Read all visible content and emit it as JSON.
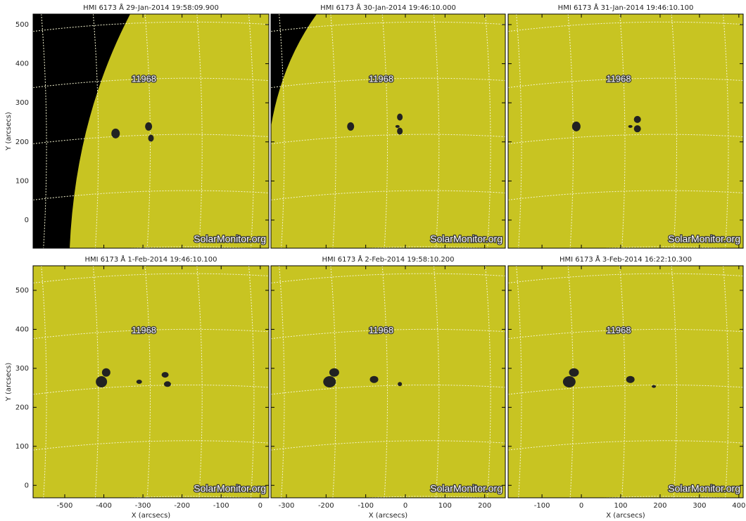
{
  "panels": [
    {
      "title": "HMI 6173 Å 29-Jan-2014 19:58:09.900",
      "region": "11968",
      "watermark": "SolarMonitor.org"
    },
    {
      "title": "HMI 6173 Å 30-Jan-2014 19:46:10.000",
      "region": "11968",
      "watermark": "SolarMonitor.org"
    },
    {
      "title": "HMI 6173 Å 31-Jan-2014 19:46:10.100",
      "region": "11968",
      "watermark": "SolarMonitor.org"
    },
    {
      "title": "HMI 6173 Å  1-Feb-2014 19:46:10.100",
      "region": "11968",
      "watermark": "SolarMonitor.org"
    },
    {
      "title": "HMI 6173 Å  2-Feb-2014 19:58:10.200",
      "region": "11968",
      "watermark": "SolarMonitor.org"
    },
    {
      "title": "HMI 6173 Å  3-Feb-2014 16:22:10.300",
      "region": "11968",
      "watermark": "SolarMonitor.org"
    }
  ],
  "y_axis": {
    "label": "Y (arcsecs)",
    "rows": [
      {
        "ylim": [
          -72,
          527
        ],
        "yticks": [
          0,
          100,
          200,
          300,
          400,
          500
        ]
      },
      {
        "ylim": [
          -32,
          563
        ],
        "yticks": [
          0,
          100,
          200,
          300,
          400,
          500
        ]
      }
    ]
  },
  "x_axis": {
    "label": "X (arcsecs)",
    "columns": [
      {
        "xlim": [
          -581,
          22
        ],
        "xticks": [
          -500,
          -400,
          -300,
          -200,
          -100,
          0
        ]
      },
      {
        "xlim": [
          -339,
          252
        ],
        "xticks": [
          -300,
          -200,
          -100,
          0,
          100,
          200
        ]
      },
      {
        "xlim": [
          -186,
          411
        ],
        "xticks": [
          -100,
          0,
          100,
          200,
          300,
          400
        ]
      }
    ]
  }
}
